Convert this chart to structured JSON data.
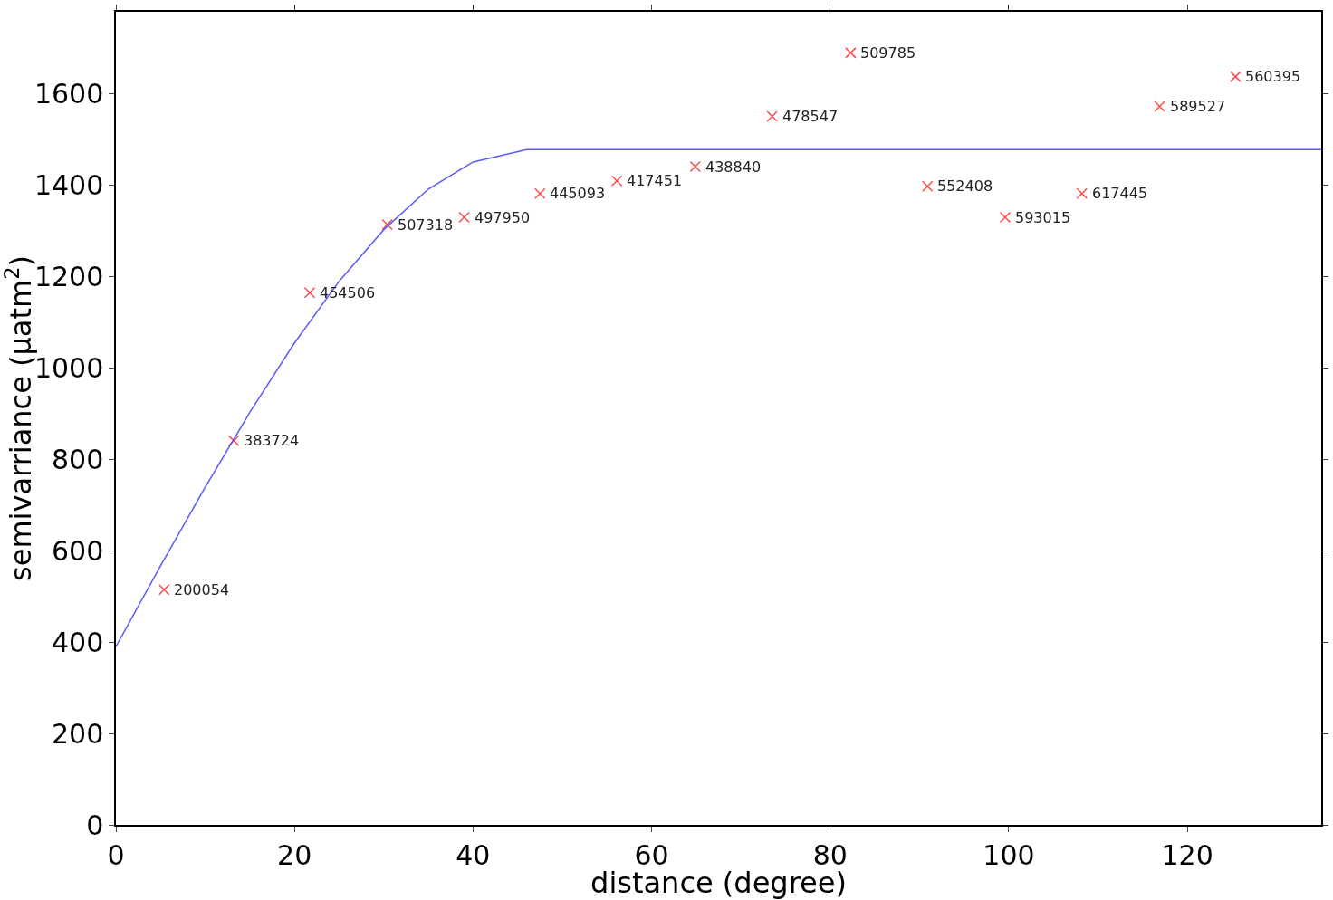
{
  "chart_data": {
    "type": "scatter",
    "xlabel": "distance (degree)",
    "ylabel": "semivarriance (µatm$^{2}$)",
    "xlim": [
      0,
      135
    ],
    "xticks": [
      0,
      20,
      40,
      60,
      80,
      100,
      120
    ],
    "ylim": [
      0,
      1780
    ],
    "yticks": [
      0,
      200,
      400,
      600,
      800,
      1000,
      1200,
      1400,
      1600
    ],
    "series": [
      {
        "color": "#ff4a4a",
        "marker": "cross",
        "x": [
          5.4,
          13.2,
          21.7,
          30.4,
          39.0,
          47.5,
          56.1,
          64.9,
          73.5,
          82.3,
          90.9,
          99.6,
          108.2,
          116.9,
          125.4
        ],
        "values": [
          515,
          841,
          1165,
          1314,
          1330,
          1382,
          1410,
          1441,
          1551,
          1690,
          1398,
          1330,
          1382,
          1573,
          1638
        ]
      },
      {
        "type": "line",
        "color": "#5a5aff",
        "marker": "none",
        "line_style": "solid",
        "x": [
          0,
          5,
          10,
          15,
          20,
          25,
          30,
          35,
          40,
          46,
          135
        ],
        "values": [
          390,
          567,
          739,
          903,
          1055,
          1190,
          1303,
          1392,
          1451,
          1478,
          1478
        ]
      }
    ],
    "annotations": [
      {
        "text": "200054",
        "x": 5.4,
        "y": 515
      },
      {
        "text": "383724",
        "x": 13.2,
        "y": 841
      },
      {
        "text": "454506",
        "x": 21.7,
        "y": 1165
      },
      {
        "text": "507318",
        "x": 30.4,
        "y": 1314
      },
      {
        "text": "497950",
        "x": 39.0,
        "y": 1330
      },
      {
        "text": "445093",
        "x": 47.5,
        "y": 1382
      },
      {
        "text": "417451",
        "x": 56.1,
        "y": 1410
      },
      {
        "text": "438840",
        "x": 64.9,
        "y": 1441
      },
      {
        "text": "478547",
        "x": 73.5,
        "y": 1551
      },
      {
        "text": "509785",
        "x": 82.3,
        "y": 1690
      },
      {
        "text": "552408",
        "x": 90.9,
        "y": 1398
      },
      {
        "text": "593015",
        "x": 99.6,
        "y": 1330
      },
      {
        "text": "617445",
        "x": 108.2,
        "y": 1382
      },
      {
        "text": "589527",
        "x": 116.9,
        "y": 1573
      },
      {
        "text": "560395",
        "x": 125.4,
        "y": 1638
      }
    ]
  }
}
